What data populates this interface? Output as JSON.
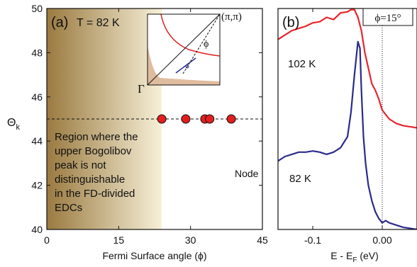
{
  "chart_data": [
    {
      "type": "scatter",
      "panel_label": "(a)",
      "annotation_temp": "T = 82 K",
      "xlabel": "Fermi Surface angle (ϕ)",
      "ylabel_main": "Θ",
      "ylabel_sub": "k",
      "xlim": [
        0,
        45
      ],
      "ylim": [
        40,
        50
      ],
      "xticks": [
        0,
        15,
        30,
        45
      ],
      "yticks": [
        40,
        42,
        44,
        46,
        48,
        50
      ],
      "points": {
        "x": [
          24,
          29,
          33,
          34,
          38.5
        ],
        "y": [
          45,
          45,
          45,
          45,
          45
        ]
      },
      "reference_line_y": 45,
      "node_line_x": 45,
      "node_label": "Node",
      "shaded_region_x": [
        0,
        24
      ],
      "region_text": [
        "Region where the",
        "upper Bogolibov",
        "peak is not",
        "distinguishable",
        "in the FD-divided",
        "EDCs"
      ],
      "inset": {
        "corner_label": "(π,π)",
        "origin_label": "Γ",
        "angle_label": "ϕ"
      },
      "colors": {
        "point_fill": "#e31e1e",
        "shade_dark": "#9a7a40",
        "shade_light": "#f7f0d8",
        "inset_fill": "#e0bc9f",
        "inset_curve": "#e02020"
      }
    },
    {
      "type": "line",
      "panel_label": "(b)",
      "phi_label": "ϕ=15°",
      "xlabel": "E - E",
      "xlabel_sub": "F",
      "xlabel_unit": " (eV)",
      "xlim": [
        -0.15,
        0.05
      ],
      "xticks": [
        -0.1,
        0.0
      ],
      "xtick_labels": [
        "-0.1",
        "0.00"
      ],
      "series": [
        {
          "name": "102 K",
          "color": "#e8262a",
          "x": [
            -0.15,
            -0.14,
            -0.13,
            -0.12,
            -0.11,
            -0.1,
            -0.09,
            -0.08,
            -0.07,
            -0.06,
            -0.05,
            -0.045,
            -0.04,
            -0.035,
            -0.03,
            -0.025,
            -0.02,
            -0.015,
            -0.01,
            -0.005,
            0.0,
            0.005,
            0.01,
            0.02,
            0.03,
            0.04,
            0.05
          ],
          "y": [
            48.6,
            48.8,
            49.0,
            49.1,
            49.2,
            49.35,
            49.4,
            49.6,
            49.5,
            49.8,
            49.85,
            49.95,
            49.95,
            49.6,
            49.0,
            48.0,
            47.3,
            46.6,
            46.3,
            45.9,
            45.4,
            45.2,
            45.0,
            44.8,
            44.7,
            44.65,
            44.6
          ]
        },
        {
          "name": "82 K",
          "color": "#2b2b8c",
          "x": [
            -0.15,
            -0.14,
            -0.13,
            -0.12,
            -0.11,
            -0.1,
            -0.09,
            -0.08,
            -0.07,
            -0.06,
            -0.05,
            -0.045,
            -0.04,
            -0.035,
            -0.032,
            -0.03,
            -0.027,
            -0.024,
            -0.02,
            -0.015,
            -0.01,
            -0.005,
            0.0,
            0.005,
            0.01,
            0.02,
            0.03,
            0.04,
            0.05
          ],
          "y": [
            43.1,
            43.3,
            43.4,
            43.5,
            43.5,
            43.55,
            43.5,
            43.4,
            43.5,
            43.7,
            44.2,
            45.3,
            47.0,
            48.5,
            48.2,
            46.3,
            44.2,
            43.0,
            42.0,
            41.3,
            40.8,
            40.5,
            40.3,
            40.4,
            40.3,
            40.2,
            40.1,
            40.05,
            40.0
          ]
        }
      ],
      "ylim": [
        40,
        50
      ],
      "reference_line_x": 0.0
    }
  ]
}
